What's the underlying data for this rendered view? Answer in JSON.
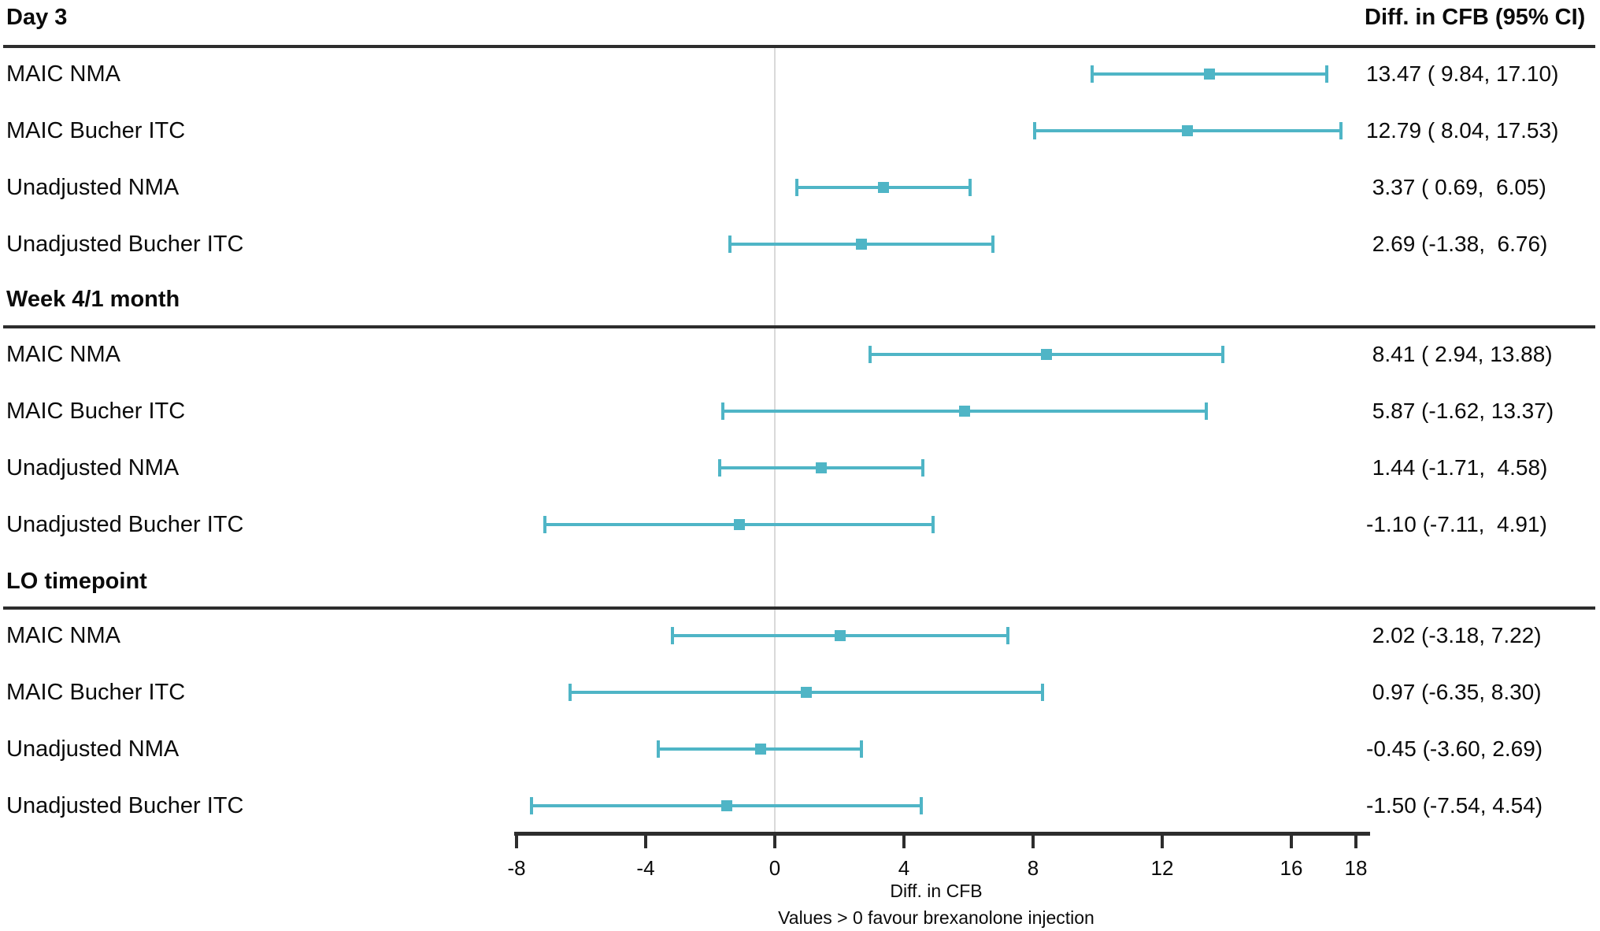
{
  "chart_data": {
    "type": "forest",
    "right_column_header": "Diff. in CFB (95% CI)",
    "xlabel": "Diff. in CFB",
    "footnote": "Values > 0 favour brexanolone injection",
    "x_range": [
      -8,
      18
    ],
    "x_ticks": [
      -8,
      -4,
      0,
      4,
      8,
      12,
      16,
      18
    ],
    "reference_line_x": 0,
    "grid": "off",
    "legend": "none",
    "colors": {
      "ci_color": "#4FB5C6",
      "axis_color": "#2D2D2D",
      "reference_line_color": "#D9D9D9",
      "text_color": "#0B0B0B"
    },
    "groups": [
      {
        "label": "Day 3",
        "rows": [
          {
            "label": "MAIC NMA",
            "estimate": 13.47,
            "lower": 9.84,
            "upper": 17.1,
            "text": "13.47 ( 9.84, 17.10)"
          },
          {
            "label": "MAIC Bucher ITC",
            "estimate": 12.79,
            "lower": 8.04,
            "upper": 17.53,
            "text": "12.79 ( 8.04, 17.53)"
          },
          {
            "label": "Unadjusted NMA",
            "estimate": 3.37,
            "lower": 0.69,
            "upper": 6.05,
            "text": " 3.37 ( 0.69,  6.05)"
          },
          {
            "label": "Unadjusted Bucher ITC",
            "estimate": 2.69,
            "lower": -1.38,
            "upper": 6.76,
            "text": " 2.69 (-1.38,  6.76)"
          }
        ]
      },
      {
        "label": "Week 4/1 month",
        "rows": [
          {
            "label": "MAIC NMA",
            "estimate": 8.41,
            "lower": 2.94,
            "upper": 13.88,
            "text": " 8.41 ( 2.94, 13.88)"
          },
          {
            "label": "MAIC Bucher ITC",
            "estimate": 5.87,
            "lower": -1.62,
            "upper": 13.37,
            "text": " 5.87 (-1.62, 13.37)"
          },
          {
            "label": "Unadjusted NMA",
            "estimate": 1.44,
            "lower": -1.71,
            "upper": 4.58,
            "text": " 1.44 (-1.71,  4.58)"
          },
          {
            "label": "Unadjusted Bucher ITC",
            "estimate": -1.1,
            "lower": -7.11,
            "upper": 4.91,
            "text": "-1.10 (-7.11,  4.91)"
          }
        ]
      },
      {
        "label": "LO timepoint",
        "rows": [
          {
            "label": "MAIC NMA",
            "estimate": 2.02,
            "lower": -3.18,
            "upper": 7.22,
            "text": " 2.02 (-3.18, 7.22)"
          },
          {
            "label": "MAIC Bucher ITC",
            "estimate": 0.97,
            "lower": -6.35,
            "upper": 8.3,
            "text": " 0.97 (-6.35, 8.30)"
          },
          {
            "label": "Unadjusted NMA",
            "estimate": -0.45,
            "lower": -3.6,
            "upper": 2.69,
            "text": "-0.45 (-3.60, 2.69)"
          },
          {
            "label": "Unadjusted Bucher ITC",
            "estimate": -1.5,
            "lower": -7.54,
            "upper": 4.54,
            "text": "-1.50 (-7.54, 4.54)"
          }
        ]
      }
    ]
  }
}
